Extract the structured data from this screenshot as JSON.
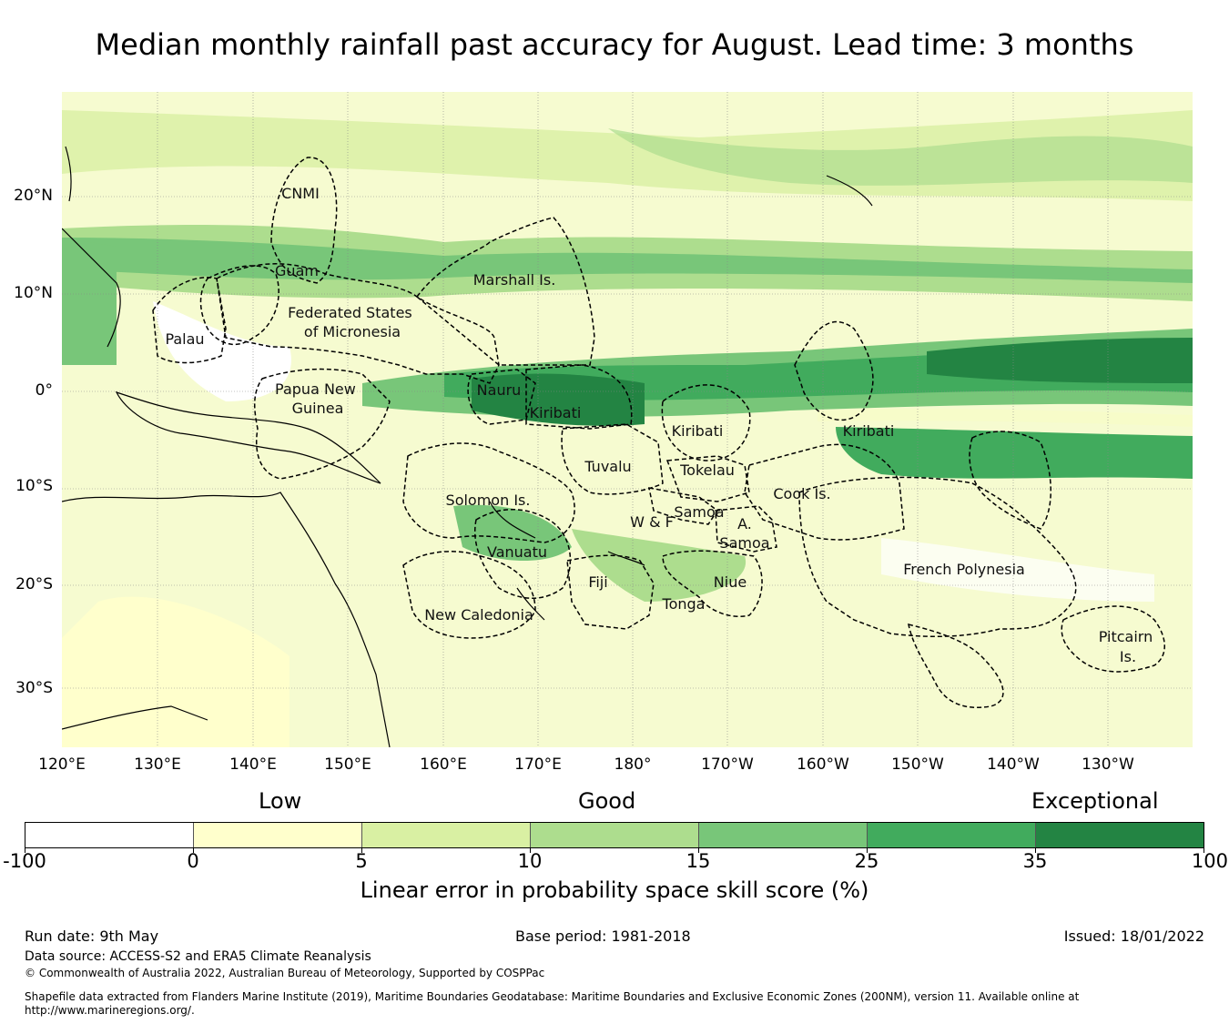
{
  "title": "Median monthly rainfall past accuracy for August. Lead time: 3 months",
  "map": {
    "lat_labels": [
      "20°N",
      "10°N",
      "0°",
      "10°S",
      "20°S",
      "30°S"
    ],
    "lon_labels": [
      "120°E",
      "130°E",
      "140°E",
      "150°E",
      "160°E",
      "170°E",
      "180°",
      "170°W",
      "160°W",
      "150°W",
      "140°W",
      "130°W"
    ],
    "regions": [
      [
        "CNMI"
      ],
      [
        "Guam"
      ],
      [
        "Marshall Is."
      ],
      [
        "Federated States",
        "of Micronesia"
      ],
      [
        "Palau"
      ],
      [
        "Papua New",
        "Guinea"
      ],
      [
        "Nauru"
      ],
      [
        "Kiribati"
      ],
      [
        "Kiribati"
      ],
      [
        "Kiribati"
      ],
      [
        "Tuvalu"
      ],
      [
        "Tokelau"
      ],
      [
        "Solomon Is."
      ],
      [
        "Cook Is."
      ],
      [
        "Samoa"
      ],
      [
        "W & F"
      ],
      [
        "A."
      ],
      [
        "Samoa"
      ],
      [
        "Vanuatu"
      ],
      [
        "Fiji"
      ],
      [
        "Niue"
      ],
      [
        "French Polynesia"
      ],
      [
        "Tonga"
      ],
      [
        "New Caledonia"
      ],
      [
        "Pitcairn",
        "Is."
      ]
    ]
  },
  "colorbar": {
    "categories": [
      "Low",
      "Good",
      "Exceptional"
    ],
    "ticks": [
      "-100",
      "0",
      "5",
      "10",
      "15",
      "25",
      "35",
      "100"
    ],
    "colors": [
      "#ffffff",
      "#ffffcc",
      "#d9f0a3",
      "#addd8e",
      "#78c679",
      "#41ab5d",
      "#238443"
    ],
    "title": "Linear error in probability space skill score (%)"
  },
  "footer": {
    "run_date": "Run date: 9th May",
    "base_period": "Base period: 1981-2018",
    "issued": "Issued: 18/01/2022",
    "data_source": "Data source: ACCESS-S2 and ERA5 Climate Reanalysis",
    "copyright": "© Commonwealth of Australia 2022, Australian Bureau of Meteorology, Supported by COSPPac",
    "shapefile_1": "Shapefile data extracted from Flanders Marine Institute (2019), Maritime Boundaries Geodatabase: Maritime Boundaries and Exclusive Economic Zones (200NM), version 11. Available online at",
    "shapefile_2": "http://www.marineregions.org/."
  }
}
